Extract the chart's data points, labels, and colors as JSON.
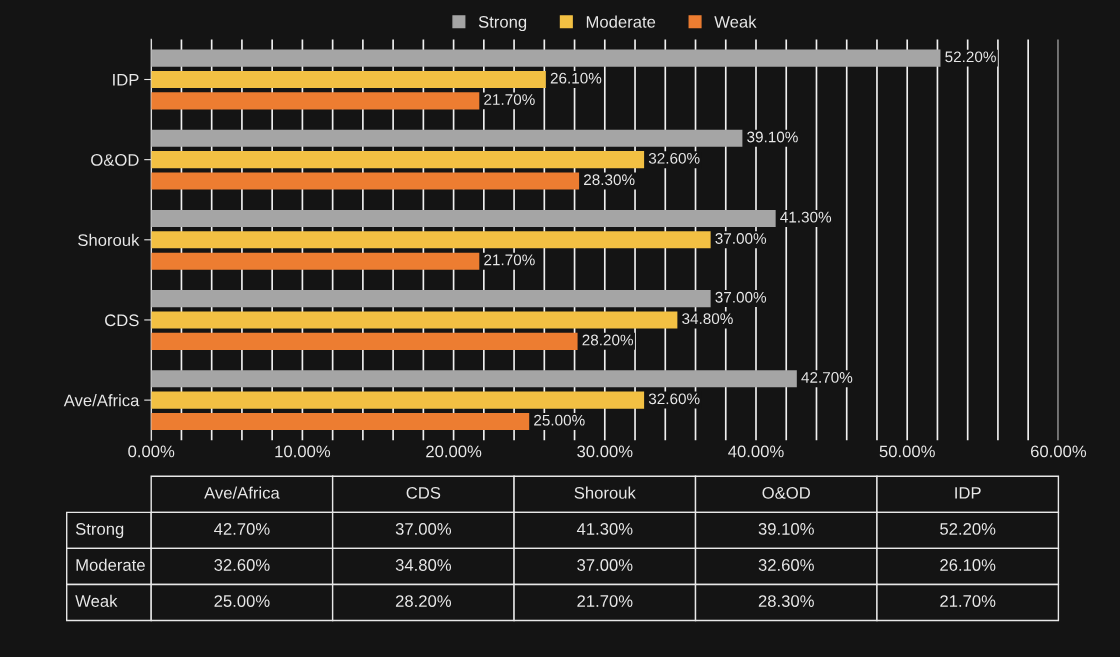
{
  "chart_data": {
    "type": "bar",
    "orientation": "horizontal",
    "categories": [
      "IDP",
      "O&OD",
      "Shorouk",
      "CDS",
      "Ave/Africa"
    ],
    "series": [
      {
        "name": "Strong",
        "color": "#a5a5a5",
        "values": [
          52.2,
          39.1,
          41.3,
          37.0,
          42.7
        ],
        "value_labels": [
          "52.20%",
          "39.10%",
          "41.30%",
          "37.00%",
          "42.70%"
        ]
      },
      {
        "name": "Moderate",
        "color": "#f2c043",
        "values": [
          26.1,
          32.6,
          37.0,
          34.8,
          32.6
        ],
        "value_labels": [
          "26.10%",
          "32.60%",
          "37.00%",
          "34.80%",
          "32.60%"
        ]
      },
      {
        "name": "Weak",
        "color": "#ed7d31",
        "values": [
          21.7,
          28.3,
          21.7,
          28.2,
          25.0
        ],
        "value_labels": [
          "21.70%",
          "28.30%",
          "21.70%",
          "28.20%",
          "25.00%"
        ]
      }
    ],
    "xlim": [
      0,
      60
    ],
    "xticks": [
      {
        "value": 0,
        "label": "0.00%"
      },
      {
        "value": 2,
        "label": null
      },
      {
        "value": 4,
        "label": null
      },
      {
        "value": 6,
        "label": null
      },
      {
        "value": 8,
        "label": null
      },
      {
        "value": 10,
        "label": "10.00%"
      },
      {
        "value": 12,
        "label": null
      },
      {
        "value": 14,
        "label": null
      },
      {
        "value": 16,
        "label": null
      },
      {
        "value": 18,
        "label": null
      },
      {
        "value": 20,
        "label": "20.00%"
      },
      {
        "value": 22,
        "label": null
      },
      {
        "value": 24,
        "label": null
      },
      {
        "value": 26,
        "label": null
      },
      {
        "value": 28,
        "label": null
      },
      {
        "value": 30,
        "label": "30.00%"
      },
      {
        "value": 32,
        "label": null
      },
      {
        "value": 34,
        "label": null
      },
      {
        "value": 36,
        "label": null
      },
      {
        "value": 38,
        "label": null
      },
      {
        "value": 40,
        "label": "40.00%"
      },
      {
        "value": 42,
        "label": null
      },
      {
        "value": 44,
        "label": null
      },
      {
        "value": 46,
        "label": null
      },
      {
        "value": 48,
        "label": null
      },
      {
        "value": 50,
        "label": "50.00%"
      },
      {
        "value": 52,
        "label": null
      },
      {
        "value": 54,
        "label": null
      },
      {
        "value": 56,
        "label": null
      },
      {
        "value": 58,
        "label": null
      },
      {
        "value": 60,
        "label": "60.00%"
      }
    ],
    "grid": "x",
    "legend": "top"
  }
}
